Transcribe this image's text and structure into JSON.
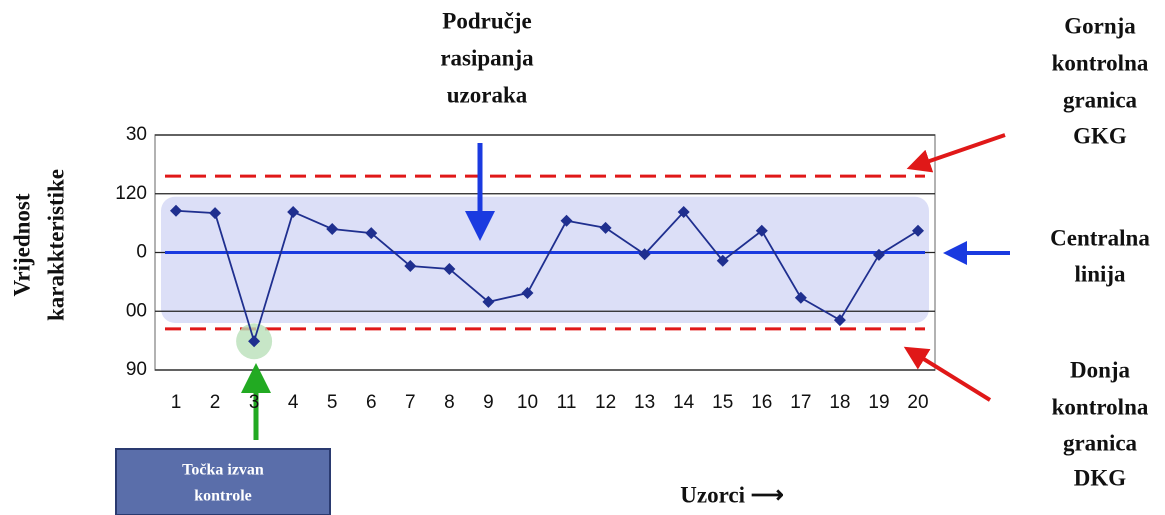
{
  "chart_data": {
    "type": "line",
    "categories": [
      "1",
      "2",
      "3",
      "4",
      "5",
      "6",
      "7",
      "8",
      "9",
      "10",
      "11",
      "12",
      "13",
      "14",
      "15",
      "16",
      "17",
      "18",
      "19",
      "20"
    ],
    "series": [
      {
        "color": "#1f2f8f",
        "values": [
          117.1,
          116.7,
          94.9,
          116.9,
          114.0,
          113.3,
          107.7,
          107.2,
          101.6,
          103.1,
          115.4,
          114.2,
          109.7,
          116.9,
          108.6,
          113.7,
          102.3,
          98.5,
          109.6,
          113.7
        ]
      }
    ],
    "ylim": [
      90,
      130
    ],
    "yticks": [
      90,
      {
        "value": 100,
        "label": "00"
      },
      {
        "value": 110,
        "label": "0"
      },
      120,
      {
        "value": 130,
        "label": "30"
      }
    ],
    "center_line": 110,
    "ucl": 123,
    "lcl": 97,
    "zone": [
      98,
      119.5
    ],
    "ylabel": [
      "Vrijednost",
      "karakkteristike"
    ],
    "xlabel": "Uzorci ⟶",
    "annotations": {
      "spread": [
        "Područje",
        "rasipanja",
        "uzoraka"
      ],
      "ucl_label": [
        "Gornja",
        "kontrolna",
        "granica",
        "GKG"
      ],
      "center_label": [
        "Centralna",
        "linija"
      ],
      "lcl_label": [
        "Donja",
        "kontrolna",
        "granica",
        "DKG"
      ],
      "out_of_control": [
        "Točka izvan",
        "kontrole"
      ]
    }
  }
}
